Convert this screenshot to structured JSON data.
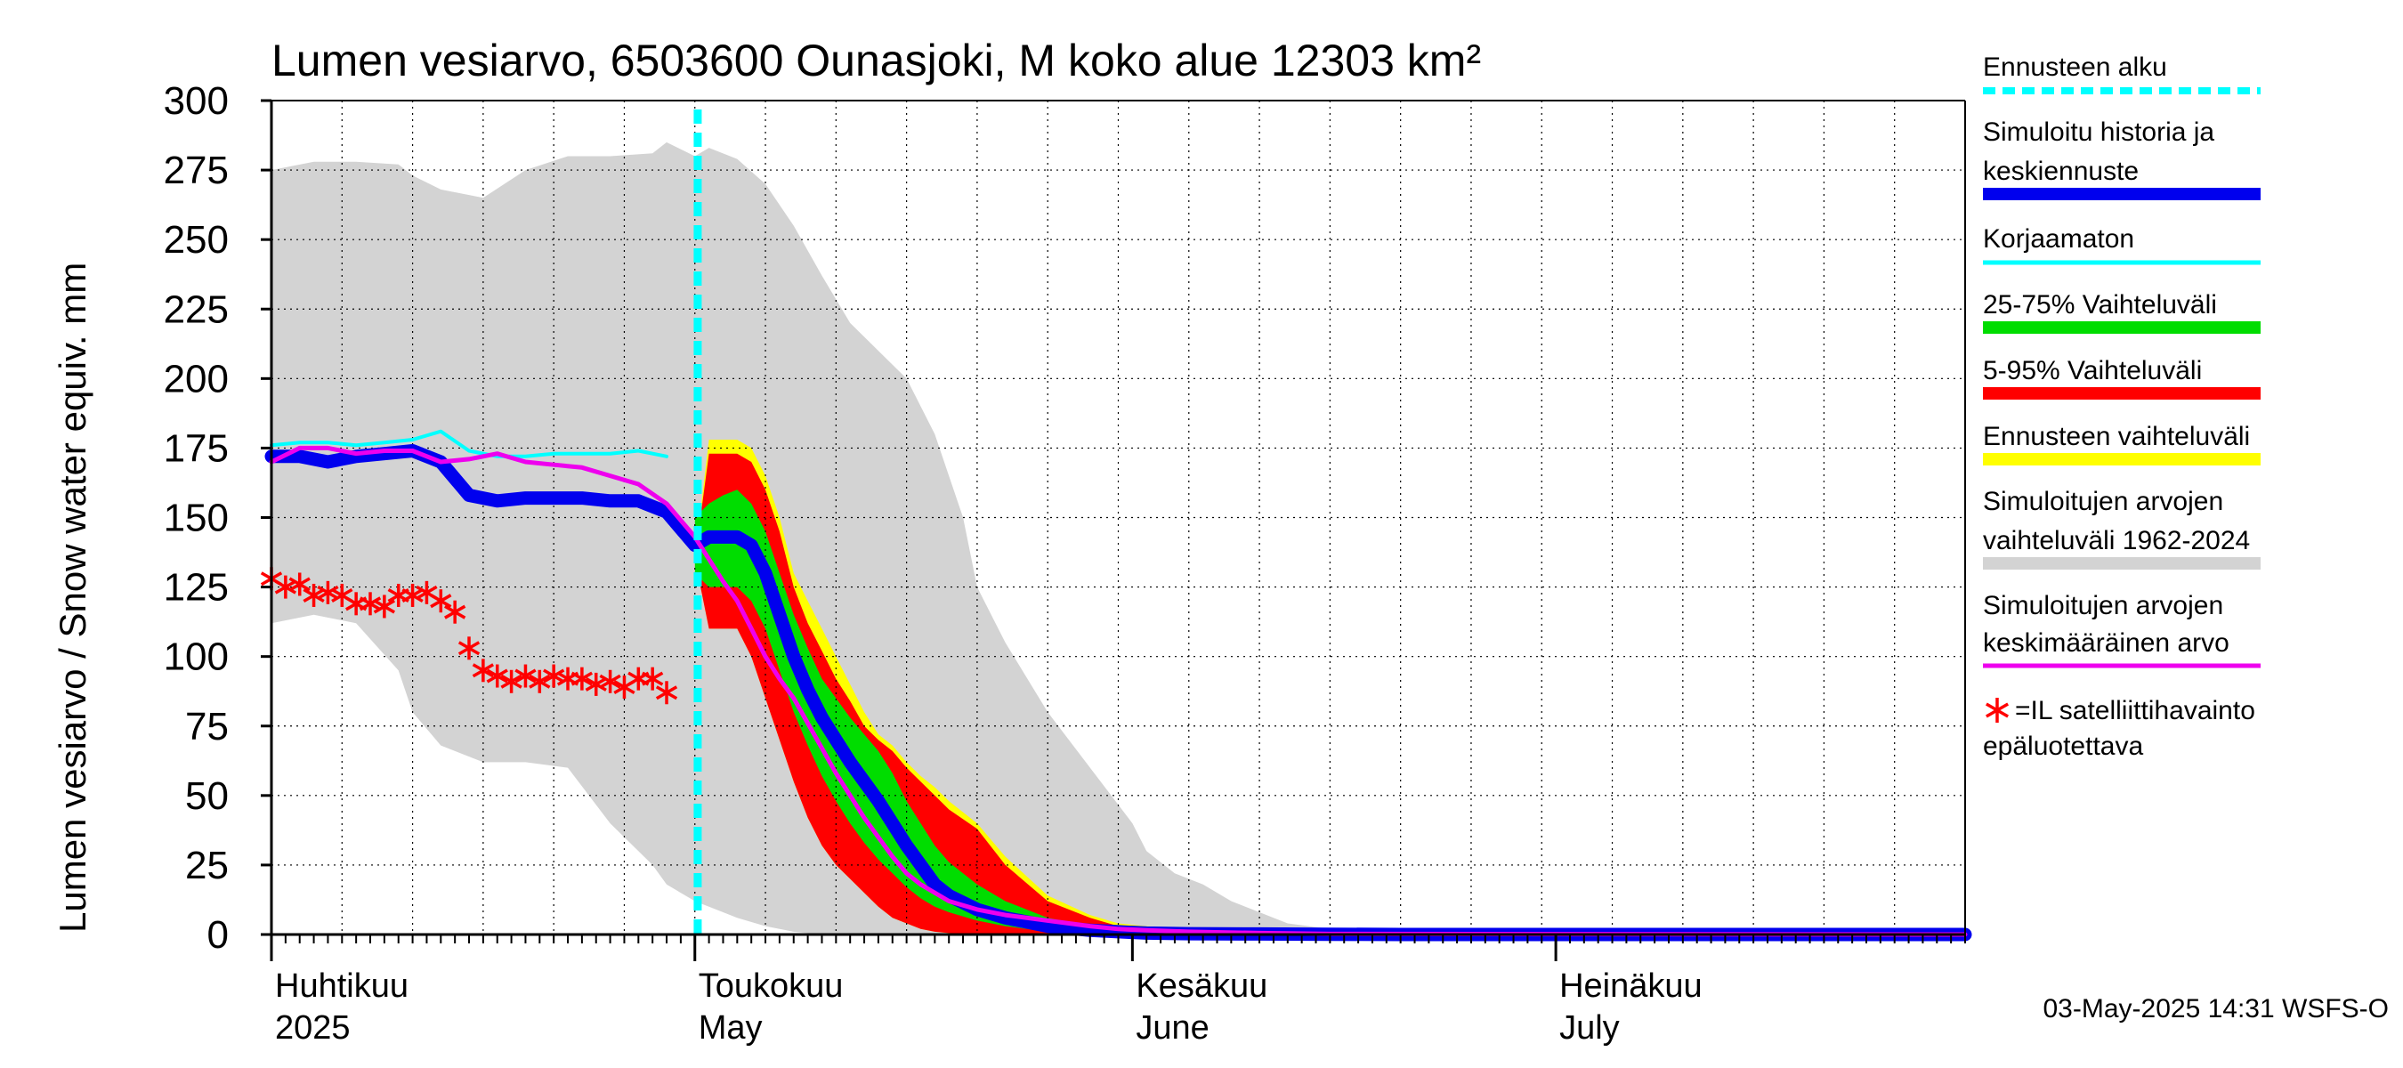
{
  "chart_data": {
    "type": "area",
    "title": "Lumen vesiarvo, 6503600 Ounasjoki, M koko alue 12303 km²",
    "ylabel": "Lumen vesiarvo / Snow water equiv.    mm",
    "ylim": [
      0,
      300
    ],
    "yticks": [
      "0",
      "25",
      "50",
      "75",
      "100",
      "125",
      "150",
      "175",
      "200",
      "225",
      "250",
      "275",
      "300"
    ],
    "x_range_days": [
      0,
      120
    ],
    "x_unit": "days since 2025-04-01",
    "months": [
      {
        "name": "Huhtikuu",
        "sub": "2025",
        "day": 0
      },
      {
        "name": "Toukokuu",
        "sub": "May",
        "day": 30
      },
      {
        "name": "Kesäkuu",
        "sub": "June",
        "day": 61
      },
      {
        "name": "Heinäkuu",
        "sub": "July",
        "day": 91
      }
    ],
    "forecast_start_day": 30.2,
    "series": [
      {
        "name": "Simuloitujen arvojen vaihteluväli 1962-2024",
        "kind": "band",
        "color": "#d3d3d3",
        "x": [
          0,
          3,
          6,
          9,
          10,
          12,
          15,
          18,
          21,
          24,
          27,
          28,
          30,
          31,
          33,
          35,
          37,
          39,
          41,
          43,
          45,
          47,
          49,
          50,
          52,
          55,
          58,
          61,
          62,
          64,
          66,
          68,
          70,
          72,
          75,
          80,
          120
        ],
        "upper": [
          275,
          278,
          278,
          277,
          273,
          268,
          265,
          275,
          280,
          280,
          281,
          285,
          280,
          283,
          279,
          270,
          255,
          237,
          220,
          210,
          200,
          180,
          150,
          125,
          105,
          80,
          60,
          40,
          30,
          22,
          18,
          12,
          8,
          4,
          2,
          1,
          0
        ],
        "lower": [
          112,
          115,
          112,
          95,
          80,
          68,
          62,
          62,
          60,
          40,
          25,
          18,
          12,
          10,
          6,
          3,
          1,
          0,
          0,
          0,
          0,
          0,
          0,
          0,
          0,
          0,
          0,
          0,
          0,
          0,
          0,
          0,
          0,
          0,
          0,
          0,
          0
        ]
      },
      {
        "name": "Ennusteen vaihteluväli",
        "kind": "band",
        "color": "#ffff00",
        "x": [
          30,
          31,
          32,
          33,
          34,
          35,
          36,
          37,
          38,
          39,
          40,
          41,
          42,
          43,
          44,
          45,
          46,
          47,
          48,
          50,
          52,
          55,
          58,
          60,
          62,
          65,
          68,
          70,
          72,
          74
        ],
        "upper": [
          135,
          178,
          178,
          178,
          175,
          165,
          150,
          130,
          120,
          110,
          100,
          90,
          80,
          72,
          68,
          62,
          57,
          53,
          48,
          40,
          28,
          14,
          7,
          4,
          3,
          2,
          2,
          1,
          0.5,
          0
        ],
        "lower": [
          135,
          110,
          110,
          110,
          100,
          85,
          70,
          55,
          42,
          32,
          25,
          20,
          15,
          10,
          6,
          4,
          2,
          1,
          0.5,
          0,
          0,
          0,
          0,
          0,
          0,
          0,
          0,
          0,
          0,
          0
        ]
      },
      {
        "name": "5-95% Vaihteluväli",
        "kind": "band",
        "color": "#ff0000",
        "x": [
          30,
          31,
          32,
          33,
          34,
          35,
          36,
          37,
          38,
          39,
          40,
          41,
          42,
          43,
          44,
          45,
          46,
          47,
          48,
          50,
          52,
          55,
          58,
          60,
          62,
          65,
          68,
          70,
          72
        ],
        "upper": [
          135,
          173,
          173,
          173,
          170,
          160,
          145,
          125,
          112,
          102,
          92,
          84,
          75,
          70,
          66,
          60,
          55,
          50,
          45,
          38,
          25,
          12,
          6,
          3,
          2,
          1,
          1,
          0.5,
          0
        ],
        "lower": [
          135,
          110,
          110,
          110,
          100,
          85,
          70,
          55,
          42,
          32,
          25,
          20,
          15,
          10,
          6,
          4,
          2,
          1,
          0.5,
          0,
          0,
          0,
          0,
          0,
          0,
          0,
          0,
          0,
          0
        ]
      },
      {
        "name": "25-75% Vaihteluväli",
        "kind": "band",
        "color": "#00dd00",
        "x": [
          30,
          31,
          32,
          33,
          34,
          35,
          36,
          37,
          38,
          39,
          40,
          41,
          42,
          43,
          44,
          45,
          46,
          47,
          48,
          50,
          52,
          55,
          58,
          60,
          62
        ],
        "upper": [
          150,
          155,
          158,
          160,
          155,
          145,
          130,
          115,
          103,
          92,
          85,
          78,
          72,
          66,
          58,
          48,
          40,
          32,
          26,
          18,
          12,
          6,
          3,
          1,
          0
        ],
        "lower": [
          130,
          125,
          125,
          125,
          120,
          110,
          95,
          80,
          68,
          57,
          48,
          40,
          33,
          27,
          22,
          17,
          13,
          10,
          8,
          5,
          3,
          1,
          0.5,
          0.2,
          0
        ]
      },
      {
        "name": "Simuloitu historia ja keskiennuste",
        "kind": "line",
        "color": "#0000ee",
        "width": 15,
        "x": [
          0,
          2,
          4,
          6,
          8,
          10,
          12,
          14,
          16,
          18,
          20,
          22,
          24,
          26,
          28,
          30,
          31,
          32,
          33,
          34,
          35,
          36,
          37,
          38,
          39,
          40,
          41,
          42,
          43,
          44,
          45,
          46,
          47,
          48,
          50,
          52,
          55,
          58,
          60,
          62,
          65,
          70,
          75,
          80,
          120
        ],
        "y": [
          172,
          172,
          170,
          172,
          173,
          174,
          170,
          158,
          156,
          157,
          157,
          157,
          156,
          156,
          152,
          140,
          143,
          143,
          143,
          140,
          130,
          115,
          100,
          88,
          78,
          70,
          62,
          55,
          48,
          40,
          32,
          25,
          18,
          14,
          9,
          6,
          3,
          1.5,
          1,
          0.5,
          0.3,
          0.2,
          0.1,
          0,
          0
        ]
      },
      {
        "name": "Korjaamaton",
        "kind": "line",
        "color": "#00ffff",
        "width": 4,
        "x": [
          0,
          2,
          4,
          6,
          8,
          10,
          12,
          14,
          16,
          18,
          20,
          22,
          24,
          26,
          28
        ],
        "y": [
          176,
          177,
          177,
          176,
          177,
          178,
          181,
          174,
          172,
          172,
          173,
          173,
          173,
          174,
          172
        ]
      },
      {
        "name": "Simuloitujen arvojen keskimääräinen arvo",
        "kind": "line",
        "color": "#ee00ee",
        "width": 5,
        "x": [
          0,
          2,
          4,
          6,
          8,
          10,
          12,
          14,
          16,
          18,
          20,
          22,
          24,
          26,
          28,
          30,
          31,
          32,
          33,
          34,
          35,
          36,
          37,
          38,
          39,
          40,
          41,
          42,
          43,
          44,
          45,
          46,
          47,
          48,
          50,
          52,
          55,
          58,
          60,
          62,
          65,
          70,
          75,
          120
        ],
        "y": [
          170,
          175,
          175,
          173,
          174,
          174,
          170,
          171,
          173,
          170,
          169,
          168,
          165,
          162,
          155,
          143,
          135,
          127,
          120,
          110,
          100,
          92,
          85,
          76,
          67,
          58,
          50,
          42,
          35,
          28,
          22,
          18,
          15,
          12,
          9,
          7,
          5,
          3,
          2,
          1.5,
          1,
          0.5,
          0.2,
          0
        ]
      },
      {
        "name": "=IL satelliittihavainto epäluotettava",
        "kind": "scatter",
        "marker": "asterisk",
        "color": "#ff0000",
        "x": [
          0,
          1,
          2,
          3,
          4,
          5,
          6,
          7,
          8,
          9,
          10,
          11,
          12,
          13,
          14,
          15,
          16,
          17,
          18,
          19,
          20,
          21,
          22,
          23,
          24,
          25,
          26,
          27,
          28
        ],
        "y": [
          128,
          125,
          126,
          122,
          123,
          122,
          119,
          119,
          118,
          122,
          122,
          123,
          120,
          116,
          103,
          95,
          93,
          91,
          93,
          91,
          93,
          92,
          92,
          90,
          91,
          89,
          92,
          92,
          87
        ]
      }
    ],
    "legend": [
      {
        "label": "Ennusteen alku",
        "style": "dash",
        "color": "#00ffff"
      },
      {
        "label": "Simuloitu historia ja",
        "label2": "keskiennuste",
        "style": "thick",
        "color": "#0000ee"
      },
      {
        "label": "Korjaamaton",
        "style": "thin",
        "color": "#00ffff"
      },
      {
        "label": "25-75% Vaihteluväli",
        "style": "thick",
        "color": "#00dd00"
      },
      {
        "label": "5-95% Vaihteluväli",
        "style": "thick",
        "color": "#ff0000"
      },
      {
        "label": "Ennusteen vaihteluväli",
        "style": "thick",
        "color": "#ffff00"
      },
      {
        "label": "Simuloitujen arvojen",
        "label2": "vaihteluväli 1962-2024",
        "style": "thick",
        "color": "#d3d3d3"
      },
      {
        "label": "Simuloitujen arvojen",
        "label2": "keskimääräinen arvo",
        "style": "thin",
        "color": "#ee00ee"
      },
      {
        "label": "=IL satelliittihavainto",
        "label2": "epäluotettava",
        "style": "asterisk",
        "color": "#ff0000"
      }
    ],
    "footer": "03-May-2025 14:31 WSFS-O"
  }
}
